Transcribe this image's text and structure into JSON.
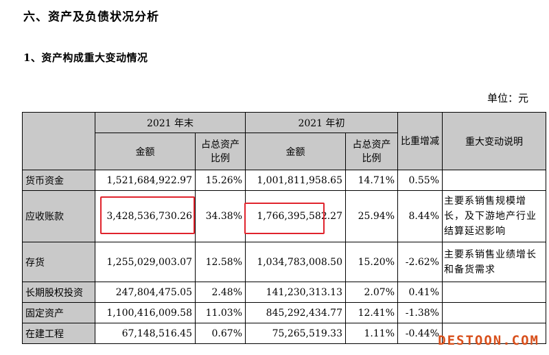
{
  "section_title": "六、资产及负债状况分析",
  "subsection_title": "1、资产构成重大变动情况",
  "unit_label": "单位：元",
  "table": {
    "group_headers": {
      "end_2021": "2021 年末",
      "begin_2021": "2021 年初",
      "change": "比重增减",
      "note": "重大变动说明"
    },
    "sub_headers": {
      "amount_end": "金额",
      "ratio_end": "占总资产比例",
      "amount_begin": "金额",
      "ratio_begin": "占总资产比例"
    },
    "rows": [
      {
        "item": "货币资金",
        "end_amount": "1,521,684,922.97",
        "end_ratio": "15.26%",
        "begin_amount": "1,001,811,958.65",
        "begin_ratio": "14.71%",
        "change": "0.55%",
        "note": ""
      },
      {
        "item": "应收账款",
        "end_amount": "3,428,536,730.26",
        "end_ratio": "34.38%",
        "begin_amount": "1,766,395,582.27",
        "begin_ratio": "25.94%",
        "change": "8.44%",
        "note": "主要系销售规模增长，及下游地产行业结算延迟影响"
      },
      {
        "item": "存货",
        "end_amount": "1,255,029,003.07",
        "end_ratio": "12.58%",
        "begin_amount": "1,034,783,008.50",
        "begin_ratio": "15.20%",
        "change": "-2.62%",
        "note": "主要系销售业绩增长和备货需求"
      },
      {
        "item": "长期股权投资",
        "end_amount": "247,804,475.05",
        "end_ratio": "2.48%",
        "begin_amount": "141,230,313.13",
        "begin_ratio": "2.07%",
        "change": "0.41%",
        "note": ""
      },
      {
        "item": "固定资产",
        "end_amount": "1,100,416,009.58",
        "end_ratio": "11.03%",
        "begin_amount": "845,292,434.77",
        "begin_ratio": "12.41%",
        "change": "-1.38%",
        "note": ""
      },
      {
        "item": "在建工程",
        "end_amount": "67,148,516.45",
        "end_ratio": "0.67%",
        "begin_amount": "75,265,519.33",
        "begin_ratio": "1.11%",
        "change": "-0.44%",
        "note": ""
      }
    ]
  },
  "highlight_color": "#e0222b",
  "watermark": "DESTOON.COM"
}
